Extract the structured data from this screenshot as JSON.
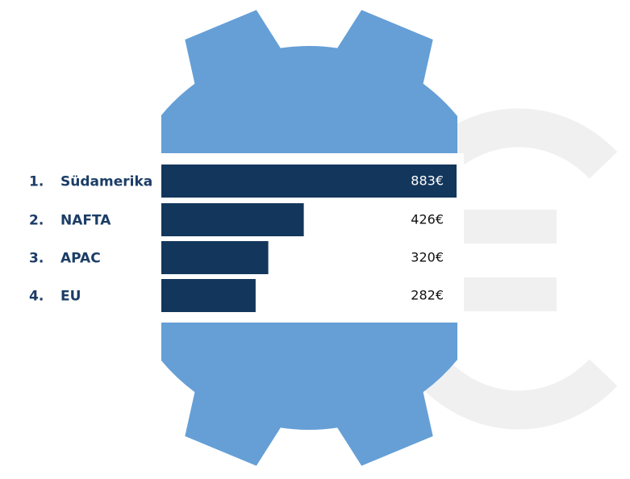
{
  "chart_data": {
    "type": "bar",
    "orientation": "horizontal",
    "categories": [
      "Südamerika",
      "NAFTA",
      "APAC",
      "EU"
    ],
    "ranks": [
      "1.",
      "2.",
      "3.",
      "4."
    ],
    "values": [
      883,
      426,
      320,
      282
    ],
    "value_labels": [
      "883€",
      "426€",
      "320€",
      "282€"
    ],
    "xlim": [
      0,
      883
    ],
    "grid": false,
    "legend": "none",
    "title": "",
    "xlabel": "",
    "ylabel": ""
  },
  "colors": {
    "bar": "#13375c",
    "label_text": "#1b3d66",
    "value_text_on_bar": "#ffffff",
    "value_text": "#111111",
    "gear": "#659fd6",
    "euro_watermark": "#f0f0f0",
    "background": "#ffffff"
  },
  "decorations": {
    "background_icon": "gear-icon",
    "watermark_icon": "euro-icon"
  }
}
